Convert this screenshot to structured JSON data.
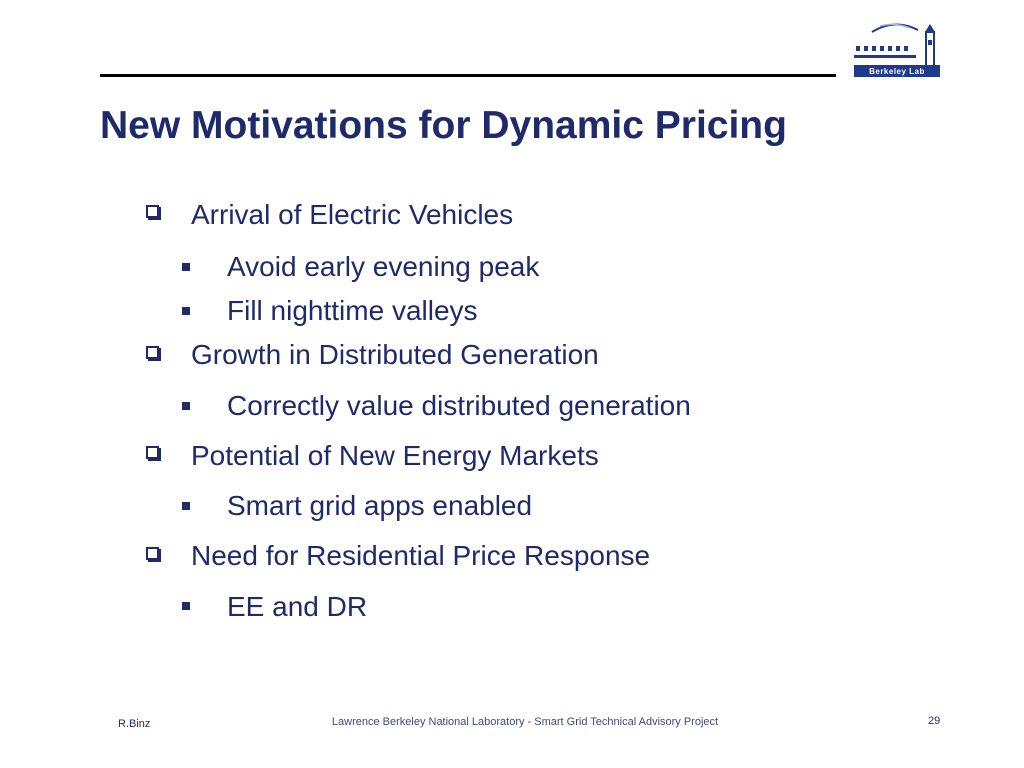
{
  "slide": {
    "title": "New Motivations for Dynamic Pricing",
    "logo_text": "Berkeley Lab",
    "colors": {
      "title": "#1f2a6b",
      "text": "#1f2a6b",
      "rule": "#000000"
    },
    "bullets": [
      {
        "text": "Arrival of Electric Vehicles",
        "sub": [
          "Avoid early evening peak",
          "Fill nighttime valleys"
        ]
      },
      {
        "text": "Growth in Distributed Generation",
        "sub": [
          "Correctly value distributed generation"
        ]
      },
      {
        "text": "Potential of New Energy Markets",
        "sub": [
          "Smart grid apps enabled"
        ]
      },
      {
        "text": "Need for Residential Price Response",
        "sub": [
          "EE and DR"
        ]
      }
    ],
    "footer": {
      "author": "R.Binz",
      "center": "Lawrence Berkeley National Laboratory - Smart Grid Technical Advisory Project",
      "page": "29"
    }
  }
}
